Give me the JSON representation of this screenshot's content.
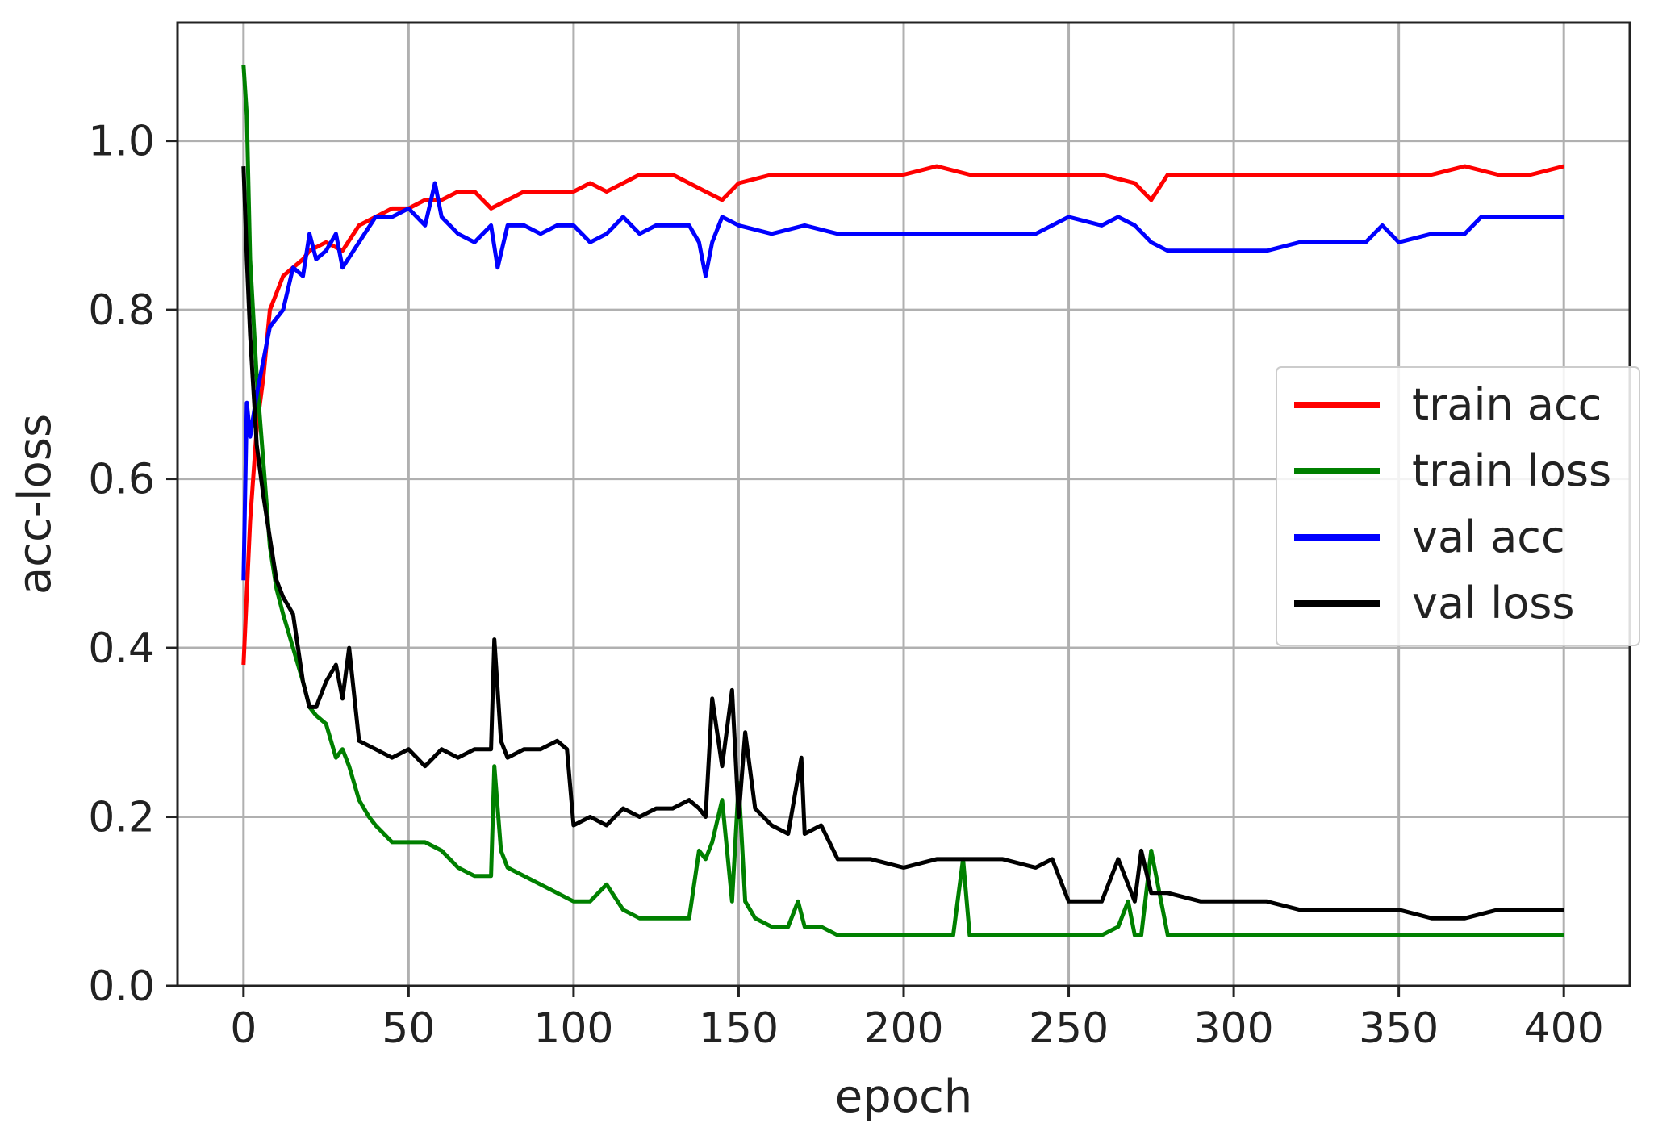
{
  "chart_data": {
    "type": "line",
    "title": "",
    "xlabel": "epoch",
    "ylabel": "acc-loss",
    "xlim": [
      -20,
      420
    ],
    "ylim": [
      0.0,
      1.14
    ],
    "xticks": [
      0,
      50,
      100,
      150,
      200,
      250,
      300,
      350,
      400
    ],
    "xtick_labels": [
      "0",
      "50",
      "100",
      "150",
      "200",
      "250",
      "300",
      "350",
      "400"
    ],
    "yticks": [
      0.0,
      0.2,
      0.4,
      0.6,
      0.8,
      1.0
    ],
    "ytick_labels": [
      "0.0",
      "0.2",
      "0.4",
      "0.6",
      "0.8",
      "1.0"
    ],
    "grid": true,
    "legend_position": "center-right",
    "series": [
      {
        "name": "train acc",
        "color": "#ff0000",
        "x": [
          0,
          2,
          4,
          6,
          8,
          10,
          12,
          15,
          18,
          20,
          25,
          30,
          35,
          40,
          45,
          50,
          55,
          60,
          65,
          70,
          75,
          80,
          85,
          90,
          95,
          100,
          105,
          110,
          115,
          120,
          125,
          130,
          135,
          140,
          145,
          150,
          160,
          170,
          180,
          190,
          200,
          210,
          220,
          230,
          240,
          250,
          260,
          270,
          275,
          280,
          290,
          300,
          310,
          320,
          330,
          340,
          350,
          360,
          370,
          380,
          390,
          400
        ],
        "y": [
          0.38,
          0.55,
          0.66,
          0.72,
          0.8,
          0.82,
          0.84,
          0.85,
          0.86,
          0.87,
          0.88,
          0.87,
          0.9,
          0.91,
          0.92,
          0.92,
          0.93,
          0.93,
          0.94,
          0.94,
          0.92,
          0.93,
          0.94,
          0.94,
          0.94,
          0.94,
          0.95,
          0.94,
          0.95,
          0.96,
          0.96,
          0.96,
          0.95,
          0.94,
          0.93,
          0.95,
          0.96,
          0.96,
          0.96,
          0.96,
          0.96,
          0.97,
          0.96,
          0.96,
          0.96,
          0.96,
          0.96,
          0.95,
          0.93,
          0.96,
          0.96,
          0.96,
          0.96,
          0.96,
          0.96,
          0.96,
          0.96,
          0.96,
          0.97,
          0.96,
          0.96,
          0.97
        ]
      },
      {
        "name": "train loss",
        "color": "#008000",
        "x": [
          0,
          1,
          2,
          4,
          6,
          8,
          10,
          12,
          15,
          18,
          20,
          22,
          25,
          28,
          30,
          32,
          35,
          38,
          40,
          45,
          50,
          55,
          60,
          65,
          70,
          75,
          76,
          78,
          80,
          85,
          90,
          95,
          100,
          105,
          110,
          115,
          120,
          125,
          130,
          135,
          138,
          140,
          142,
          145,
          148,
          150,
          152,
          155,
          160,
          165,
          168,
          170,
          175,
          180,
          190,
          200,
          210,
          215,
          218,
          220,
          230,
          240,
          250,
          260,
          265,
          268,
          270,
          272,
          275,
          280,
          290,
          300,
          310,
          320,
          330,
          340,
          350,
          360,
          370,
          380,
          390,
          400
        ],
        "y": [
          1.09,
          1.03,
          0.86,
          0.72,
          0.62,
          0.52,
          0.47,
          0.44,
          0.4,
          0.36,
          0.33,
          0.32,
          0.31,
          0.27,
          0.28,
          0.26,
          0.22,
          0.2,
          0.19,
          0.17,
          0.17,
          0.17,
          0.16,
          0.14,
          0.13,
          0.13,
          0.26,
          0.16,
          0.14,
          0.13,
          0.12,
          0.11,
          0.1,
          0.1,
          0.12,
          0.09,
          0.08,
          0.08,
          0.08,
          0.08,
          0.16,
          0.15,
          0.17,
          0.22,
          0.1,
          0.24,
          0.1,
          0.08,
          0.07,
          0.07,
          0.1,
          0.07,
          0.07,
          0.06,
          0.06,
          0.06,
          0.06,
          0.06,
          0.15,
          0.06,
          0.06,
          0.06,
          0.06,
          0.06,
          0.07,
          0.1,
          0.06,
          0.06,
          0.16,
          0.06,
          0.06,
          0.06,
          0.06,
          0.06,
          0.06,
          0.06,
          0.06,
          0.06,
          0.06,
          0.06,
          0.06,
          0.06
        ]
      },
      {
        "name": "val acc",
        "color": "#0000ff",
        "x": [
          0,
          1,
          2,
          4,
          6,
          8,
          10,
          12,
          15,
          18,
          20,
          22,
          25,
          28,
          30,
          35,
          40,
          45,
          50,
          55,
          58,
          60,
          65,
          70,
          75,
          77,
          80,
          85,
          90,
          95,
          100,
          105,
          110,
          115,
          120,
          125,
          130,
          135,
          138,
          140,
          142,
          145,
          150,
          160,
          170,
          180,
          190,
          200,
          210,
          220,
          230,
          240,
          250,
          260,
          265,
          270,
          275,
          280,
          290,
          300,
          310,
          320,
          330,
          340,
          345,
          350,
          360,
          370,
          375,
          380,
          390,
          400
        ],
        "y": [
          0.48,
          0.69,
          0.65,
          0.7,
          0.74,
          0.78,
          0.79,
          0.8,
          0.85,
          0.84,
          0.89,
          0.86,
          0.87,
          0.89,
          0.85,
          0.88,
          0.91,
          0.91,
          0.92,
          0.9,
          0.95,
          0.91,
          0.89,
          0.88,
          0.9,
          0.85,
          0.9,
          0.9,
          0.89,
          0.9,
          0.9,
          0.88,
          0.89,
          0.91,
          0.89,
          0.9,
          0.9,
          0.9,
          0.88,
          0.84,
          0.88,
          0.91,
          0.9,
          0.89,
          0.9,
          0.89,
          0.89,
          0.89,
          0.89,
          0.89,
          0.89,
          0.89,
          0.91,
          0.9,
          0.91,
          0.9,
          0.88,
          0.87,
          0.87,
          0.87,
          0.87,
          0.88,
          0.88,
          0.88,
          0.9,
          0.88,
          0.89,
          0.89,
          0.91,
          0.91,
          0.91,
          0.91
        ]
      },
      {
        "name": "val loss",
        "color": "#000000",
        "x": [
          0,
          1,
          2,
          4,
          6,
          8,
          10,
          12,
          15,
          18,
          20,
          22,
          25,
          28,
          30,
          32,
          35,
          40,
          45,
          50,
          55,
          60,
          65,
          70,
          75,
          76,
          78,
          80,
          85,
          90,
          95,
          98,
          100,
          105,
          110,
          115,
          120,
          125,
          130,
          135,
          138,
          140,
          142,
          145,
          148,
          150,
          152,
          155,
          160,
          165,
          169,
          170,
          175,
          180,
          190,
          200,
          210,
          220,
          230,
          240,
          245,
          250,
          255,
          260,
          265,
          270,
          272,
          275,
          280,
          290,
          300,
          310,
          320,
          330,
          340,
          350,
          360,
          370,
          380,
          390,
          400
        ],
        "y": [
          0.97,
          0.86,
          0.77,
          0.64,
          0.58,
          0.53,
          0.48,
          0.46,
          0.44,
          0.36,
          0.33,
          0.33,
          0.36,
          0.38,
          0.34,
          0.4,
          0.29,
          0.28,
          0.27,
          0.28,
          0.26,
          0.28,
          0.27,
          0.28,
          0.28,
          0.41,
          0.29,
          0.27,
          0.28,
          0.28,
          0.29,
          0.28,
          0.19,
          0.2,
          0.19,
          0.21,
          0.2,
          0.21,
          0.21,
          0.22,
          0.21,
          0.2,
          0.34,
          0.26,
          0.35,
          0.2,
          0.3,
          0.21,
          0.19,
          0.18,
          0.27,
          0.18,
          0.19,
          0.15,
          0.15,
          0.14,
          0.15,
          0.15,
          0.15,
          0.14,
          0.15,
          0.1,
          0.1,
          0.1,
          0.15,
          0.1,
          0.16,
          0.11,
          0.11,
          0.1,
          0.1,
          0.1,
          0.09,
          0.09,
          0.09,
          0.09,
          0.08,
          0.08,
          0.09,
          0.09,
          0.09
        ]
      }
    ]
  }
}
